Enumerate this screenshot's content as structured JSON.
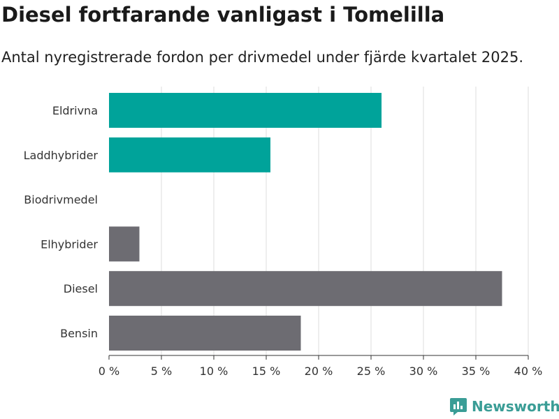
{
  "title": "Diesel fortfarande vanligast i Tomelilla",
  "subtitle": "Antal nyregistrerade fordon per drivmedel under fjärde kvartalet 2025.",
  "brand": {
    "name": "Newsworthy",
    "icon": "newsworthy-logo-icon"
  },
  "colors": {
    "highlight": "#00a39a",
    "base": "#6d6c72",
    "grid": "#dcdcdc",
    "axis": "#333333"
  },
  "chart_data": {
    "type": "bar",
    "orientation": "horizontal",
    "title": "Diesel fortfarande vanligast i Tomelilla",
    "xlabel": "",
    "ylabel": "",
    "xlim": [
      0,
      40
    ],
    "grid": true,
    "categories": [
      "Eldrivna",
      "Laddhybrider",
      "Biodrivmedel",
      "Elhybrider",
      "Diesel",
      "Bensin"
    ],
    "values": [
      26.0,
      15.4,
      0,
      2.9,
      37.5,
      18.3
    ],
    "highlighted": [
      true,
      true,
      false,
      false,
      false,
      false
    ],
    "ticks": [
      0,
      5,
      10,
      15,
      20,
      25,
      30,
      35,
      40
    ],
    "tick_labels": [
      "0 %",
      "5 %",
      "10 %",
      "15 %",
      "20 %",
      "25 %",
      "30 %",
      "35 %",
      "40 %"
    ]
  }
}
